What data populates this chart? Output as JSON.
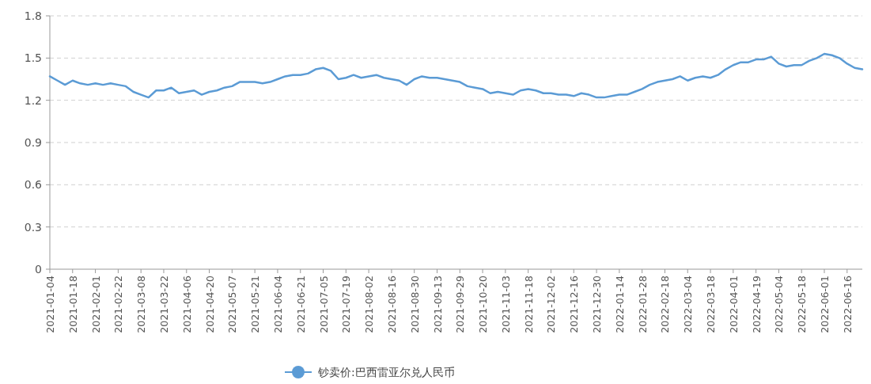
{
  "chart_data": {
    "type": "line",
    "categories": [
      "2021-01-04",
      null,
      null,
      "2021-01-18",
      null,
      null,
      "2021-02-01",
      null,
      null,
      "2021-02-22",
      null,
      null,
      "2021-03-08",
      null,
      null,
      "2021-03-22",
      null,
      null,
      "2021-04-06",
      null,
      null,
      "2021-04-20",
      null,
      null,
      "2021-05-07",
      null,
      null,
      "2021-05-21",
      null,
      null,
      "2021-06-04",
      null,
      null,
      "2021-06-21",
      null,
      null,
      "2021-07-05",
      null,
      null,
      "2021-07-19",
      null,
      null,
      "2021-08-02",
      null,
      null,
      "2021-08-16",
      null,
      null,
      "2021-08-30",
      null,
      null,
      "2021-09-13",
      null,
      null,
      "2021-09-29",
      null,
      null,
      "2021-10-20",
      null,
      null,
      "2021-11-03",
      null,
      null,
      "2021-11-18",
      null,
      null,
      "2021-12-02",
      null,
      null,
      "2021-12-16",
      null,
      null,
      "2021-12-30",
      null,
      null,
      "2022-01-14",
      null,
      null,
      "2022-01-28",
      null,
      null,
      "2022-02-18",
      null,
      null,
      "2022-03-04",
      null,
      null,
      "2022-03-18",
      null,
      null,
      "2022-04-01",
      null,
      null,
      "2022-04-19",
      null,
      null,
      "2022-05-04",
      null,
      null,
      "2022-05-18",
      null,
      null,
      "2022-06-01",
      null,
      null,
      "2022-06-16",
      null,
      null
    ],
    "series": [
      {
        "name": "钞卖价:巴西雷亚尔兑人民币",
        "color": "#5b9bd5",
        "values": [
          1.37,
          1.34,
          1.31,
          1.34,
          1.32,
          1.31,
          1.32,
          1.31,
          1.32,
          1.31,
          1.3,
          1.26,
          1.24,
          1.22,
          1.27,
          1.27,
          1.29,
          1.25,
          1.26,
          1.27,
          1.24,
          1.26,
          1.27,
          1.29,
          1.3,
          1.33,
          1.33,
          1.33,
          1.32,
          1.33,
          1.35,
          1.37,
          1.38,
          1.38,
          1.39,
          1.42,
          1.43,
          1.41,
          1.35,
          1.36,
          1.38,
          1.36,
          1.37,
          1.38,
          1.36,
          1.35,
          1.34,
          1.31,
          1.35,
          1.37,
          1.36,
          1.36,
          1.35,
          1.34,
          1.33,
          1.3,
          1.29,
          1.28,
          1.25,
          1.26,
          1.25,
          1.24,
          1.27,
          1.28,
          1.27,
          1.25,
          1.25,
          1.24,
          1.24,
          1.23,
          1.25,
          1.24,
          1.22,
          1.22,
          1.23,
          1.24,
          1.24,
          1.26,
          1.28,
          1.31,
          1.33,
          1.34,
          1.35,
          1.37,
          1.34,
          1.36,
          1.37,
          1.36,
          1.38,
          1.42,
          1.45,
          1.47,
          1.47,
          1.49,
          1.49,
          1.51,
          1.46,
          1.44,
          1.45,
          1.45,
          1.48,
          1.5,
          1.53,
          1.52,
          1.5,
          1.46,
          1.43,
          1.42
        ]
      }
    ],
    "ylim": [
      0,
      1.8
    ],
    "yticks": [
      0,
      0.3,
      0.6,
      0.9,
      1.2,
      1.5,
      1.8
    ],
    "grid": "y",
    "legend": "bottom"
  }
}
